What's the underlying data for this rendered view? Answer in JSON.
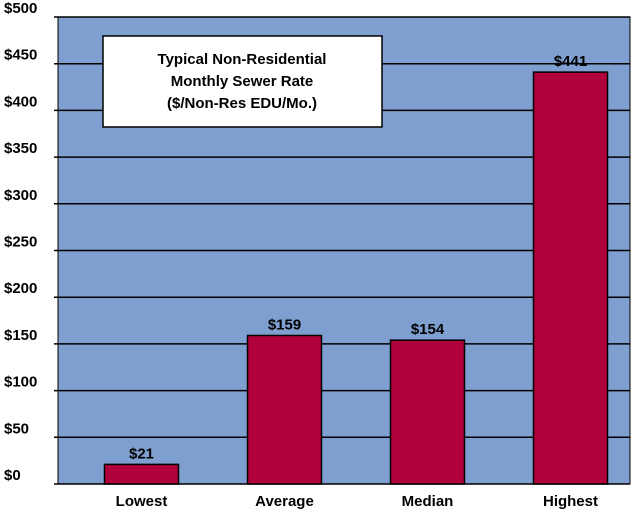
{
  "chart_data": {
    "type": "bar",
    "title": [
      "Typical Non-Residential",
      "Monthly Sewer Rate"
    ],
    "subtitle": "($/Non-Res EDU/Mo.)",
    "categories": [
      "Lowest",
      "Average",
      "Median",
      "Highest"
    ],
    "values": [
      21,
      159,
      154,
      441
    ],
    "value_labels": [
      "$21",
      "$159",
      "$154",
      "$441"
    ],
    "color": "#b0003a",
    "background": "#7f9fd0",
    "ylim": [
      0,
      500
    ],
    "yticks": [
      {
        "value": 0,
        "label": "$0"
      },
      {
        "value": 50,
        "label": "$50"
      },
      {
        "value": 100,
        "label": "$100"
      },
      {
        "value": 150,
        "label": "$150"
      },
      {
        "value": 200,
        "label": "$200"
      },
      {
        "value": 250,
        "label": "$250"
      },
      {
        "value": 300,
        "label": "$300"
      },
      {
        "value": 350,
        "label": "$350"
      },
      {
        "value": 400,
        "label": "$400"
      },
      {
        "value": 450,
        "label": "$450"
      },
      {
        "value": 500,
        "label": "$500"
      }
    ],
    "grid": true
  }
}
